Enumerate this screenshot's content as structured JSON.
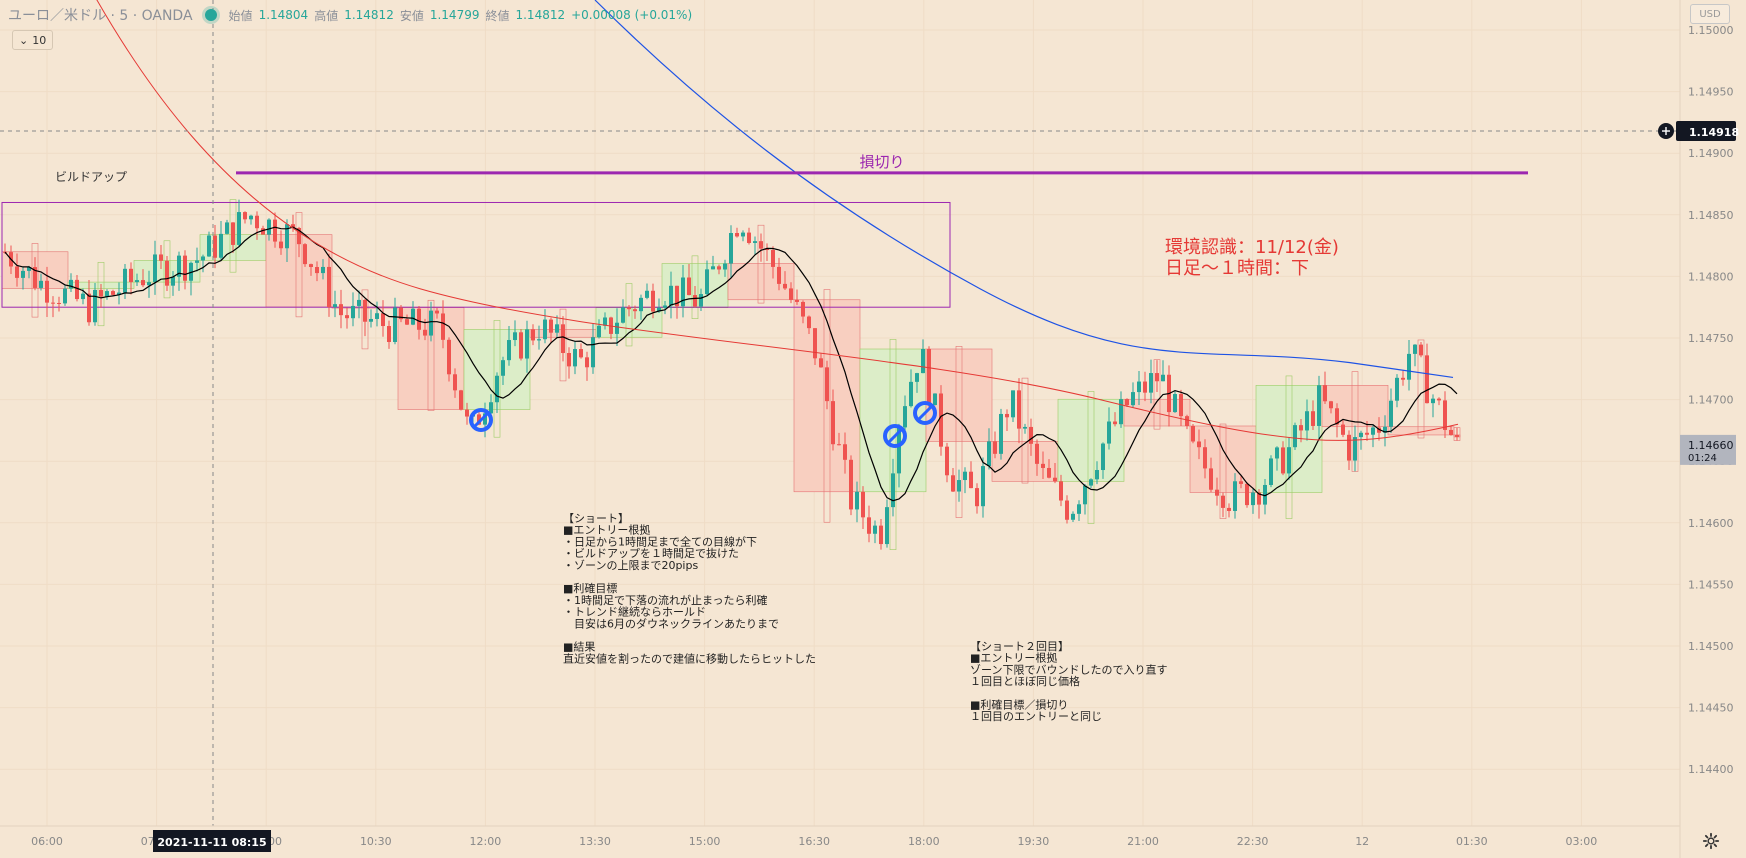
{
  "header": {
    "symbol": "ユーロ／米ドル · 5 · OANDA",
    "open_label": "始値",
    "open": "1.14804",
    "high_label": "高値",
    "high": "1.14812",
    "low_label": "安値",
    "low": "1.14799",
    "close_label": "終値",
    "close": "1.14812",
    "change": "+0.00008 (+0.01%)",
    "indicator_count": "10",
    "currency_button": "USD"
  },
  "chart_data": {
    "type": "candlestick",
    "price_axis": {
      "ticks": [
        "1.15000",
        "1.14950",
        "1.14900",
        "1.14850",
        "1.14800",
        "1.14750",
        "1.14700",
        "1.14650",
        "1.14600",
        "1.14550",
        "1.14500",
        "1.14450",
        "1.14400"
      ],
      "crosshair_price": "1.14918",
      "last_price": "1.14660",
      "countdown": "01:24",
      "range": [
        1.1437,
        1.1502
      ]
    },
    "time_axis": {
      "ticks": [
        "06:00",
        "07:30",
        "09:00",
        "10:30",
        "12:00",
        "13:30",
        "15:00",
        "16:30",
        "18:00",
        "19:30",
        "21:00",
        "22:30",
        "12",
        "01:30",
        "03:00"
      ],
      "crosshair_time": "2021-11-11   08:15"
    },
    "series": [
      {
        "name": "MA short",
        "color": "#000000"
      },
      {
        "name": "MA mid",
        "color": "#e53935"
      },
      {
        "name": "MA long",
        "color": "#1e53e5"
      }
    ],
    "annotations": {
      "build_up": "ビルドアップ",
      "stop_loss": "損切り",
      "env_title": "環境認識：11/12(金)",
      "env_detail": "日足～１時間：下",
      "note1": [
        "【ショート】",
        "■エントリー根拠",
        "・日足から1時間足まで全ての目線が下",
        "・ビルドアップを１時間足で抜けた",
        "・ゾーンの上限まで20pips",
        "",
        "■利確目標",
        "・1時間足で下落の流れが止まったら利確",
        "・トレンド継続ならホールド",
        "　目安は6月のダウネックラインあたりまで",
        "",
        "■結果",
        "直近安値を割ったので建値に移動したらヒットした"
      ],
      "note2": [
        "【ショート２回目】",
        "■エントリー根拠",
        "ゾーン下限でバウンドしたので入り直す",
        "１回目とほぼ同じ価格",
        "",
        "■利確目標／損切り",
        "１回目のエントリーと同じ"
      ]
    },
    "colors": {
      "up": "#26a69a",
      "down": "#ef5350",
      "bg": "#f5e6d3",
      "zone": "#9c27b0",
      "stop": "#9c27b0",
      "marker": "#2962ff",
      "env_text": "#e53935"
    }
  }
}
